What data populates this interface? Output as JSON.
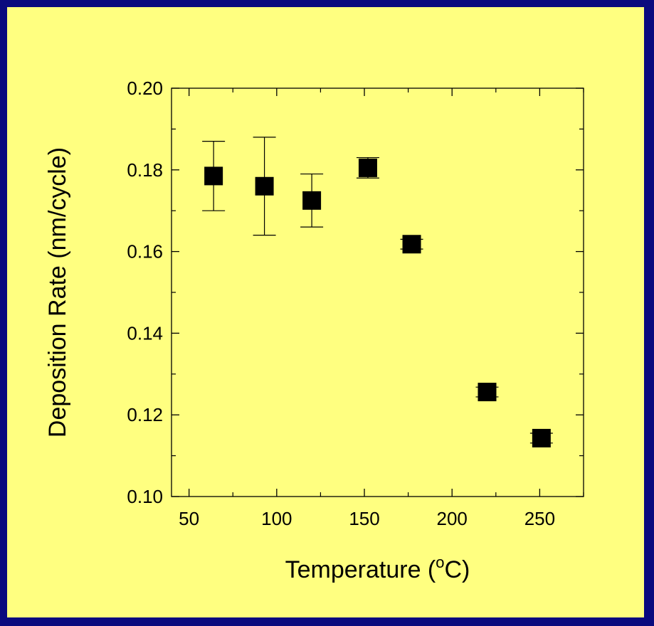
{
  "colors": {
    "background": "#0a0a7e",
    "panel": "#ffff80",
    "marker": "#000000"
  },
  "chart_data": {
    "type": "scatter",
    "xlabel": "Temperature (°C)",
    "ylabel": "Deposition Rate (nm/cycle)",
    "xlim": [
      40,
      275
    ],
    "ylim": [
      0.1,
      0.2
    ],
    "xticks": [
      50,
      100,
      150,
      200,
      250
    ],
    "yticks": [
      0.1,
      0.12,
      0.14,
      0.16,
      0.18,
      0.2
    ],
    "x_tick_labels": [
      "50",
      "100",
      "150",
      "200",
      "250"
    ],
    "y_tick_labels": [
      "0.10",
      "0.12",
      "0.14",
      "0.16",
      "0.18",
      "0.20"
    ],
    "grid": false,
    "marker": "filled-square",
    "points": [
      {
        "x": 64,
        "y": 0.1785,
        "err": 0.0085
      },
      {
        "x": 93,
        "y": 0.176,
        "err": 0.012
      },
      {
        "x": 120,
        "y": 0.1725,
        "err": 0.0065
      },
      {
        "x": 152,
        "y": 0.1805,
        "err": 0.0025
      },
      {
        "x": 177,
        "y": 0.1618,
        "err": 0.0012
      },
      {
        "x": 220,
        "y": 0.1256,
        "err": 0.0012
      },
      {
        "x": 251,
        "y": 0.1143,
        "err": 0.0012
      }
    ]
  }
}
